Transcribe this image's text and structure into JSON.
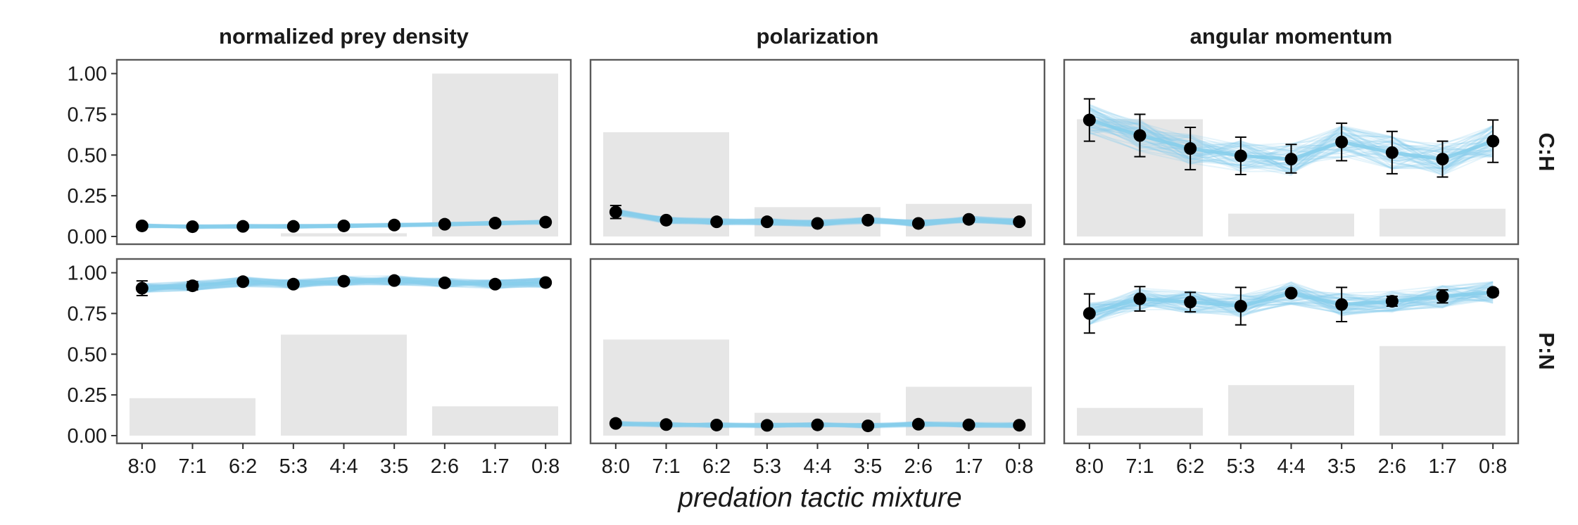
{
  "chart_data": {
    "type": "scatter",
    "xlabel": "predation tactic mixture",
    "ylabel": "",
    "categories": [
      "8:0",
      "7:1",
      "6:2",
      "5:3",
      "4:4",
      "3:5",
      "2:6",
      "1:7",
      "0:8"
    ],
    "ylim": [
      0,
      1.05
    ],
    "yticks": [
      "0.00",
      "0.25",
      "0.50",
      "0.75",
      "1.00"
    ],
    "grid": false,
    "columns": [
      "normalized prey density",
      "polarization",
      "angular momentum"
    ],
    "rows": [
      "C:H",
      "P:N"
    ],
    "colors": {
      "ribbon": "#87ceeb",
      "point": "#000000",
      "bar": "#e6e6e6",
      "border": "#5a5a5a"
    },
    "panels": [
      {
        "column": "normalized prey density",
        "row": "C:H",
        "bars": [
          0.0,
          0.02,
          1.0
        ],
        "means": [
          0.065,
          0.06,
          0.062,
          0.062,
          0.065,
          0.07,
          0.075,
          0.082,
          0.088
        ],
        "lower": [
          0.055,
          0.052,
          0.054,
          0.054,
          0.057,
          0.062,
          0.066,
          0.073,
          0.078
        ],
        "upper": [
          0.075,
          0.068,
          0.07,
          0.07,
          0.073,
          0.078,
          0.084,
          0.091,
          0.098
        ],
        "ribbon": 0.012
      },
      {
        "column": "polarization",
        "row": "C:H",
        "bars": [
          0.64,
          0.18,
          0.2
        ],
        "means": [
          0.15,
          0.1,
          0.09,
          0.09,
          0.08,
          0.1,
          0.08,
          0.105,
          0.09
        ],
        "lower": [
          0.11,
          0.09,
          0.08,
          0.08,
          0.07,
          0.09,
          0.07,
          0.09,
          0.08
        ],
        "upper": [
          0.19,
          0.11,
          0.1,
          0.1,
          0.09,
          0.11,
          0.09,
          0.12,
          0.1
        ],
        "ribbon": 0.02
      },
      {
        "column": "angular momentum",
        "row": "C:H",
        "bars": [
          0.72,
          0.14,
          0.17
        ],
        "means": [
          0.715,
          0.62,
          0.54,
          0.495,
          0.475,
          0.58,
          0.515,
          0.475,
          0.585
        ],
        "lower": [
          0.585,
          0.49,
          0.41,
          0.38,
          0.39,
          0.465,
          0.385,
          0.365,
          0.455
        ],
        "upper": [
          0.845,
          0.75,
          0.67,
          0.61,
          0.565,
          0.695,
          0.645,
          0.585,
          0.715
        ],
        "ribbon": 0.1
      },
      {
        "column": "normalized prey density",
        "row": "P:N",
        "bars": [
          0.23,
          0.62,
          0.18
        ],
        "means": [
          0.905,
          0.92,
          0.945,
          0.93,
          0.948,
          0.952,
          0.938,
          0.93,
          0.94
        ],
        "lower": [
          0.86,
          0.895,
          0.935,
          0.92,
          0.94,
          0.945,
          0.93,
          0.92,
          0.93
        ],
        "upper": [
          0.95,
          0.945,
          0.955,
          0.94,
          0.956,
          0.96,
          0.946,
          0.94,
          0.95
        ],
        "ribbon": 0.03
      },
      {
        "column": "polarization",
        "row": "P:N",
        "bars": [
          0.59,
          0.14,
          0.3
        ],
        "means": [
          0.075,
          0.068,
          0.065,
          0.063,
          0.066,
          0.06,
          0.07,
          0.066,
          0.064
        ],
        "lower": [
          0.065,
          0.058,
          0.055,
          0.053,
          0.056,
          0.05,
          0.06,
          0.056,
          0.054
        ],
        "upper": [
          0.085,
          0.078,
          0.075,
          0.073,
          0.076,
          0.07,
          0.08,
          0.076,
          0.074
        ],
        "ribbon": 0.015
      },
      {
        "column": "angular momentum",
        "row": "P:N",
        "bars": [
          0.17,
          0.31,
          0.55
        ],
        "means": [
          0.75,
          0.84,
          0.82,
          0.795,
          0.875,
          0.805,
          0.825,
          0.855,
          0.88
        ],
        "lower": [
          0.63,
          0.765,
          0.76,
          0.68,
          0.865,
          0.7,
          0.795,
          0.815,
          0.86
        ],
        "upper": [
          0.87,
          0.915,
          0.88,
          0.91,
          0.885,
          0.91,
          0.855,
          0.895,
          0.9
        ],
        "ribbon": 0.07
      }
    ]
  }
}
